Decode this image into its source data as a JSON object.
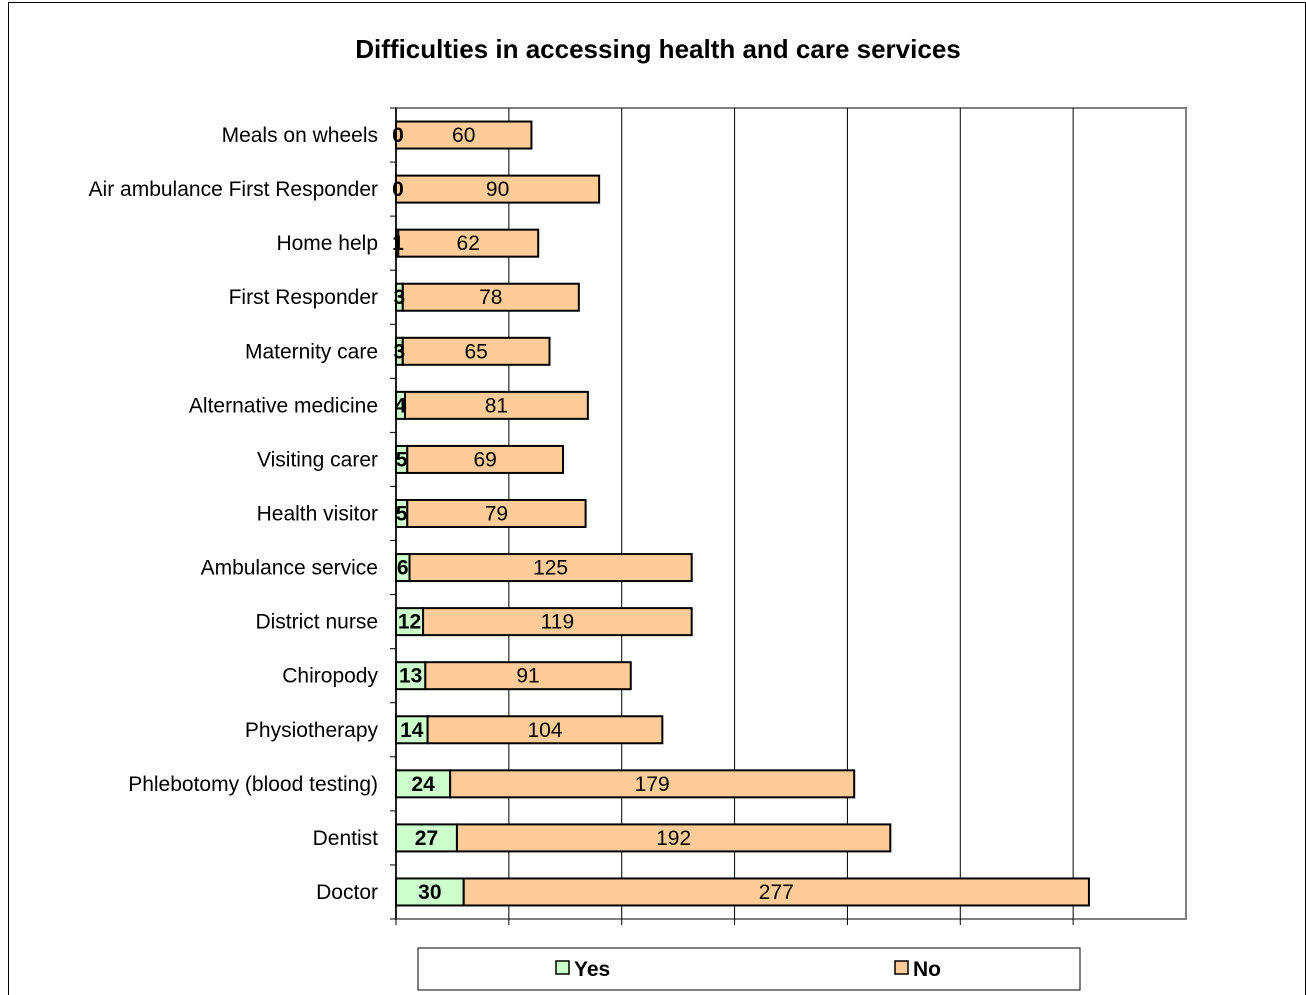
{
  "chart_data": {
    "type": "bar",
    "orientation": "horizontal",
    "stacked": true,
    "title": "Difficulties in accessing health and care services",
    "categories": [
      "Meals on wheels",
      "Air ambulance First Responder",
      "Home help",
      "First Responder",
      "Maternity care",
      "Alternative medicine",
      "Visiting carer",
      "Health visitor",
      "Ambulance service",
      "District nurse",
      "Chiropody",
      "Physiotherapy",
      "Phlebotomy (blood testing)",
      "Dentist",
      "Doctor"
    ],
    "series": [
      {
        "name": "Yes",
        "color": "#ccffcc",
        "values": [
          0,
          0,
          1,
          3,
          3,
          4,
          5,
          5,
          6,
          12,
          13,
          14,
          24,
          27,
          30
        ]
      },
      {
        "name": "No",
        "color": "#ffcc99",
        "values": [
          60,
          90,
          62,
          78,
          65,
          81,
          69,
          79,
          125,
          119,
          91,
          104,
          179,
          192,
          277
        ]
      }
    ],
    "xlim": [
      0,
      350
    ],
    "grid": true,
    "legend_position": "bottom"
  }
}
